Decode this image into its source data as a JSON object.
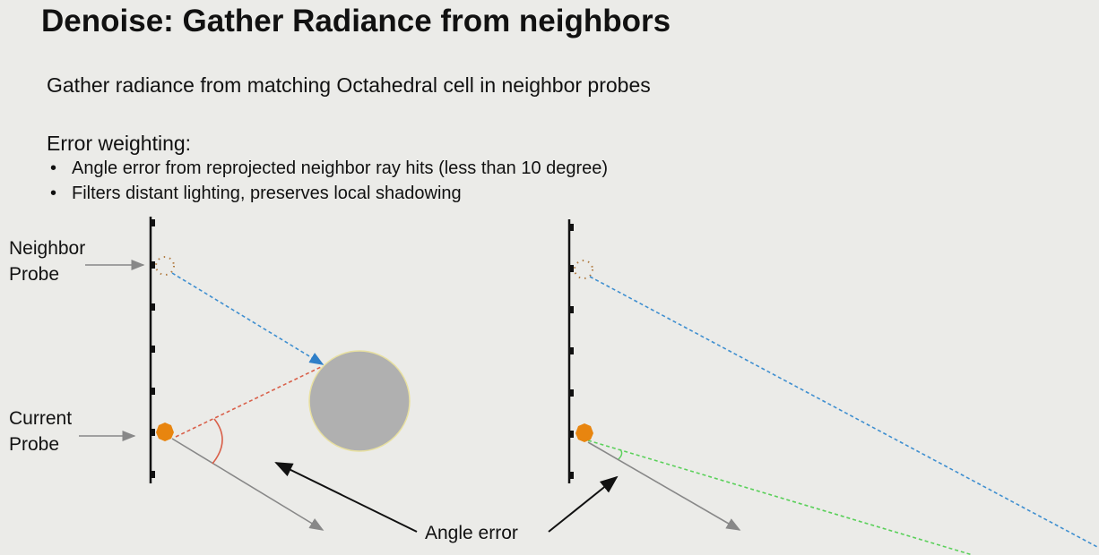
{
  "slide": {
    "title": "Denoise: Gather Radiance from neighbors",
    "subtitle": "Gather radiance from matching Octahedral cell in neighbor probes",
    "error_heading": "Error weighting:",
    "bullets": [
      "Angle error from reprojected neighbor ray hits (less than 10 degree)",
      "Filters distant lighting, preserves local shadowing"
    ]
  },
  "diagram": {
    "neighbor_probe_label": [
      "Neighbor",
      "Probe"
    ],
    "current_probe_label": [
      "Current",
      "Probe"
    ],
    "angle_error_label": "Angle error",
    "colors": {
      "probe": "#e8850f",
      "neighbor_ray": "#3f8fd0",
      "current_ray": "#d9604a",
      "small_error_ray": "#5ad05a",
      "occluder": "#b0b0b0"
    }
  }
}
